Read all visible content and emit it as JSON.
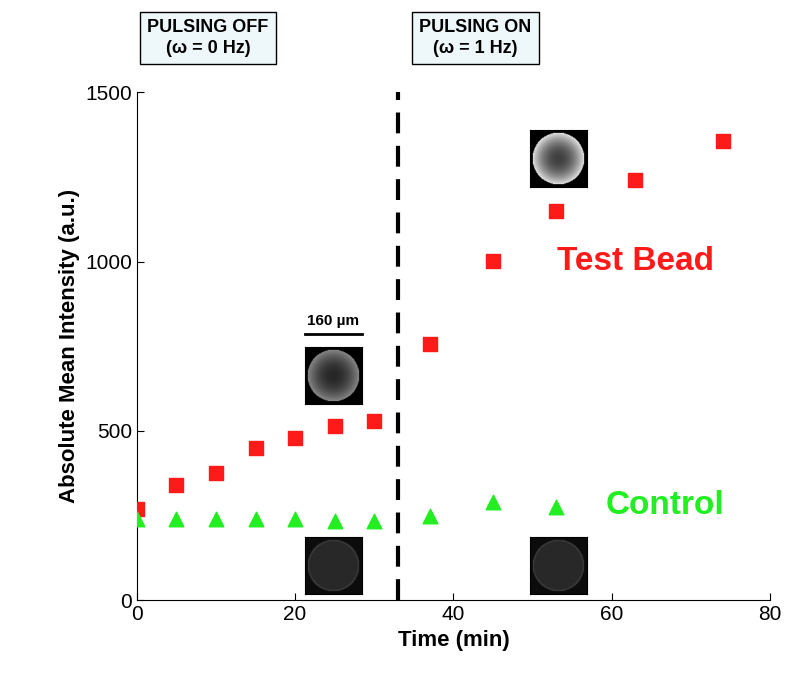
{
  "chart_data": {
    "type": "scatter",
    "x_label": "Time (min)",
    "y_label": "Absolute Mean Intensity (a.u.)",
    "xlim": [
      0,
      80
    ],
    "xticks": [
      0,
      20,
      40,
      60,
      80
    ],
    "ylim": [
      0,
      1500
    ],
    "yticks": [
      0,
      500,
      1000,
      1500
    ],
    "series": [
      {
        "name": "Test Bead",
        "color": "#ff1a1a",
        "marker": "square",
        "x": [
          0,
          5,
          10,
          15,
          20,
          25,
          30,
          37,
          45,
          53,
          63,
          74
        ],
        "values": [
          270,
          340,
          375,
          450,
          478,
          513,
          528,
          757,
          1003,
          1148,
          1240,
          1355
        ]
      },
      {
        "name": "Control",
        "color": "#22ee22",
        "marker": "triangle",
        "x": [
          0,
          5,
          10,
          15,
          20,
          25,
          30,
          37,
          45,
          53
        ],
        "values": [
          240,
          240,
          240,
          240,
          240,
          235,
          235,
          248,
          290,
          275
        ]
      }
    ],
    "annotations": [
      "PULSING OFF\n(ω = 0 Hz)",
      "PULSING ON\n(ω = 1 Hz)"
    ],
    "phase_change_x": 33,
    "scale_bar_label": "160 µm"
  }
}
